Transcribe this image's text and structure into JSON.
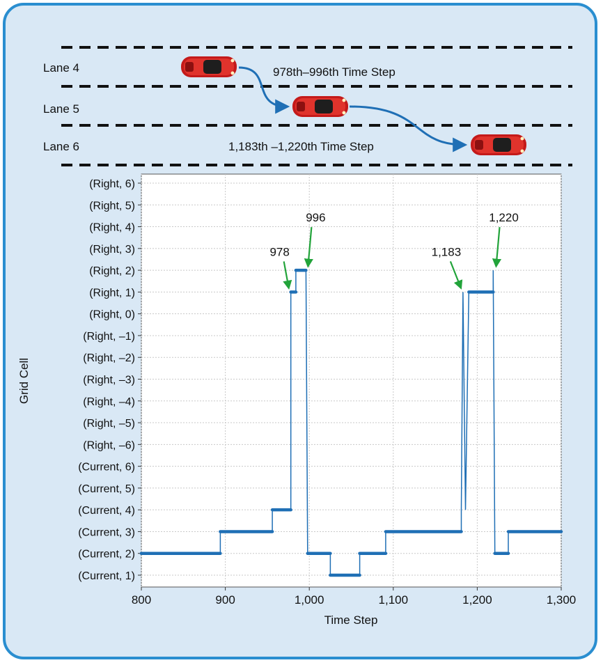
{
  "colors": {
    "frame_border": "#2a8ed0",
    "frame_background": "#d9e8f5",
    "series": "#1f6fb5",
    "arrow": "#22a33a",
    "lane_arrow": "#1f6fb5",
    "car": "#c41a1a"
  },
  "lanes": [
    {
      "label": "Lane 4"
    },
    {
      "label": "Lane 5"
    },
    {
      "label": "Lane 6"
    }
  ],
  "lane_changes": [
    {
      "text": "978th–996th  Time Step"
    },
    {
      "text": "1,183th –1,220th  Time Step"
    }
  ],
  "cars": [
    {
      "icon": "car-icon",
      "lane": "Lane 4"
    },
    {
      "icon": "car-icon",
      "lane": "Lane 5"
    },
    {
      "icon": "car-icon",
      "lane": "Lane 6"
    }
  ],
  "chart_data": {
    "type": "line",
    "xlabel": "Time Step",
    "ylabel": "Grid Cell",
    "xlim": [
      800,
      1300
    ],
    "x_ticks": [
      800,
      900,
      1000,
      1100,
      1200,
      1300
    ],
    "x_tick_labels": [
      "800",
      "900",
      "1,000",
      "1,100",
      "1,200",
      "1,300"
    ],
    "y_categories": [
      "(Current, 1)",
      "(Current, 2)",
      "(Current, 3)",
      "(Current, 4)",
      "(Current, 5)",
      "(Current, 6)",
      "(Right, –6)",
      "(Right, –5)",
      "(Right, –4)",
      "(Right, –3)",
      "(Right, –2)",
      "(Right, –1)",
      "(Right, 0)",
      "(Right, 1)",
      "(Right, 2)",
      "(Right, 3)",
      "(Right, 4)",
      "(Right, 5)",
      "(Right, 6)"
    ],
    "grid": true,
    "series": [
      {
        "x": [
          800,
          894,
          894,
          956,
          956,
          978,
          978,
          984,
          984,
          996,
          996,
          998,
          998,
          1025,
          1025,
          1060,
          1060,
          1091,
          1091,
          1181,
          1181,
          1183,
          1183,
          1186,
          1186,
          1190,
          1190,
          1219,
          1219,
          1221,
          1221,
          1237,
          1237,
          1300
        ],
        "y": [
          "(Current, 2)",
          "(Current, 2)",
          "(Current, 3)",
          "(Current, 3)",
          "(Current, 4)",
          "(Current, 4)",
          "(Right, 1)",
          "(Right, 1)",
          "(Right, 2)",
          "(Right, 2)",
          "(Right, 2)",
          "(Current, 2)",
          "(Current, 2)",
          "(Current, 2)",
          "(Current, 1)",
          "(Current, 1)",
          "(Current, 2)",
          "(Current, 2)",
          "(Current, 3)",
          "(Current, 3)",
          "(Current, 4)",
          "(Right, 1)",
          "(Right, 1)",
          "(Current, 4)",
          "(Current, 4)",
          "(Right, 1)",
          "(Right, 1)",
          "(Right, 1)",
          "(Right, 2)",
          "(Current, 2)",
          "(Current, 2)",
          "(Current, 2)",
          "(Current, 3)",
          "(Current, 3)"
        ]
      }
    ],
    "annotations": [
      {
        "text": "978",
        "x": 978,
        "y": "(Right, 1)"
      },
      {
        "text": "996",
        "x": 996,
        "y": "(Right, 2)"
      },
      {
        "text": "1,183",
        "x": 1183,
        "y": "(Right, 1)"
      },
      {
        "text": "1,220",
        "x": 1220,
        "y": "(Right, 2)"
      }
    ]
  }
}
